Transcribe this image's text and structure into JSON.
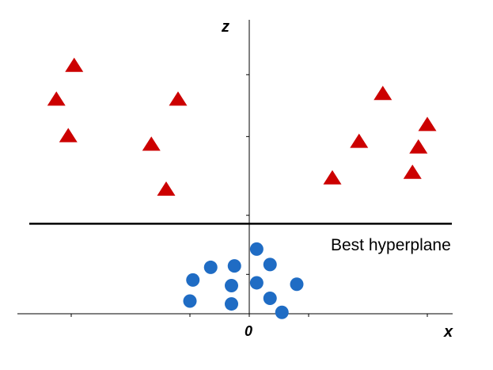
{
  "chart_data": {
    "type": "scatter",
    "title": "",
    "xlabel": "x",
    "ylabel": "z",
    "origin_label": "0",
    "xlim": [
      -8,
      7
    ],
    "ylim": [
      0,
      10
    ],
    "grid": false,
    "annotation": "Best hyperplane",
    "hyperplane": {
      "z": 3.2
    },
    "series": [
      {
        "marker": "triangle",
        "color": "#cc0000",
        "points": [
          {
            "x": -5.9,
            "z": 8.8
          },
          {
            "x": -6.5,
            "z": 7.6
          },
          {
            "x": -6.1,
            "z": 6.3
          },
          {
            "x": -2.4,
            "z": 7.6
          },
          {
            "x": -3.3,
            "z": 6.0
          },
          {
            "x": -2.8,
            "z": 4.4
          },
          {
            "x": 4.5,
            "z": 7.8
          },
          {
            "x": 6.0,
            "z": 6.7
          },
          {
            "x": 3.7,
            "z": 6.1
          },
          {
            "x": 5.7,
            "z": 5.9
          },
          {
            "x": 5.5,
            "z": 5.0
          },
          {
            "x": 2.8,
            "z": 4.8
          }
        ]
      },
      {
        "marker": "circle",
        "color": "#1f6cc4",
        "points": [
          {
            "x": 0.25,
            "z": 2.3
          },
          {
            "x": -1.3,
            "z": 1.65
          },
          {
            "x": -0.5,
            "z": 1.7
          },
          {
            "x": 0.7,
            "z": 1.75
          },
          {
            "x": -1.9,
            "z": 1.2
          },
          {
            "x": -0.6,
            "z": 1.0
          },
          {
            "x": 0.25,
            "z": 1.1
          },
          {
            "x": 1.6,
            "z": 1.05
          },
          {
            "x": -2.0,
            "z": 0.45
          },
          {
            "x": -0.6,
            "z": 0.35
          },
          {
            "x": 0.7,
            "z": 0.55
          },
          {
            "x": 1.1,
            "z": 0.05
          }
        ]
      }
    ]
  }
}
